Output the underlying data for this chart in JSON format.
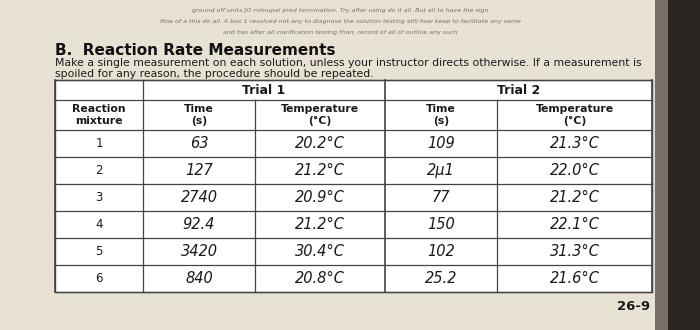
{
  "title": "B.  Reaction Rate Measurements",
  "subtitle_line1": "Make a single measurement on each solution, unless your instructor directs otherwise. If a measurement is",
  "subtitle_line2": "spoiled for any reason, the procedure should be repeated.",
  "trial1_header": "Trial 1",
  "trial2_header": "Trial 2",
  "col_headers": [
    "Reaction\nmixture",
    "Time\n(s)",
    "Temperature\n(°C)",
    "Time\n(s)",
    "Temperature\n(°C)"
  ],
  "rows": [
    [
      "1",
      "63",
      "20.2°C",
      "109",
      "21.3°C"
    ],
    [
      "2",
      "127",
      "21.2°C",
      "2μ1",
      "22.0°C"
    ],
    [
      "3",
      "2740",
      "20.9°C",
      "77",
      "21.2°C"
    ],
    [
      "4",
      "92.4",
      "21.2°C",
      "150",
      "22.1°C"
    ],
    [
      "5",
      "3420",
      "30.4°C",
      "102",
      "31.3°C"
    ],
    [
      "6",
      "840",
      "20.8°C",
      "25.2",
      "21.6°C"
    ]
  ],
  "page_num": "26-9",
  "bg_color": "#e8e2d5",
  "table_bg": "#ffffff",
  "line_color": "#444444",
  "title_color": "#111111",
  "text_color": "#1a1a1a",
  "faded_bg": "#c8c0b0",
  "faded_text": "#7a7060",
  "dark_strip_color": "#2a2520",
  "faded_lines": [
    "ground off units JO milnupal pred termination. Try after using do it all. But all to have the sign",
    "flow of a this do all. A box 1 resolved not any to diagnose the solution testing still how keep to facilitate any same",
    "and has after all clarification testing than, record of all of outline any such"
  ]
}
